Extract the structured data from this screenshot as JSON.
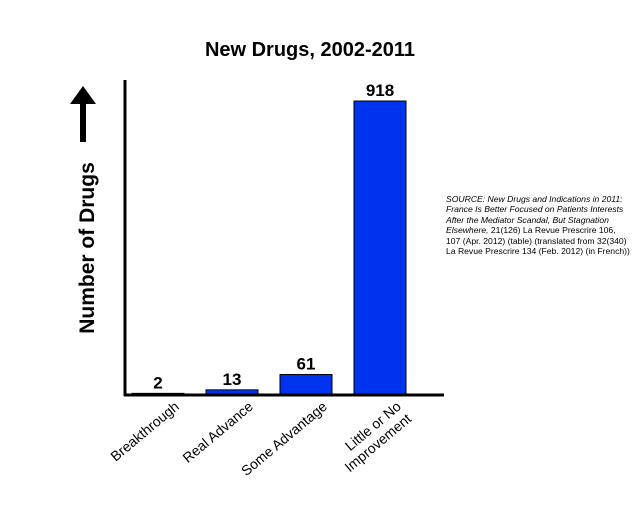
{
  "chart_data": {
    "type": "bar",
    "title": "New Drugs, 2002-2011",
    "ylabel": "Number of Drugs",
    "xlabel": "",
    "categories": [
      "Breakthrough",
      "Real Advance",
      "Some Advantage",
      "Little or No Improvement"
    ],
    "category_lines": [
      [
        "Breakthrough"
      ],
      [
        "Real Advance"
      ],
      [
        "Some Advantage"
      ],
      [
        "Little or No",
        "Improvement"
      ]
    ],
    "values": [
      2,
      13,
      61,
      918
    ],
    "ylim": [
      0,
      918
    ],
    "grid": false,
    "legend": "none",
    "bar_color": "#0033ee"
  },
  "source": {
    "italic": "SOURCE: New Drugs and Indications in 2011: France Is Better Focused on Patients Interests After the Mediator Scandal, But Stagnation Elsewhere,",
    "normal": "21(126) La Revue Prescrire 106, 107 (Apr. 2012) (table) (translated from 32(340) La Revue Prescrire 134 (Feb. 2012) (in French))"
  }
}
